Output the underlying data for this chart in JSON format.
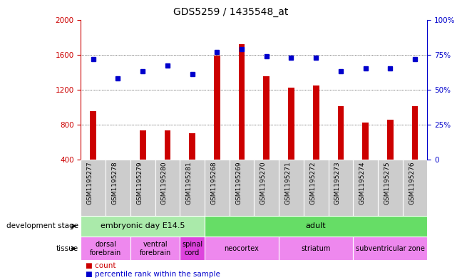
{
  "title": "GDS5259 / 1435548_at",
  "samples": [
    "GSM1195277",
    "GSM1195278",
    "GSM1195279",
    "GSM1195280",
    "GSM1195281",
    "GSM1195268",
    "GSM1195269",
    "GSM1195270",
    "GSM1195271",
    "GSM1195272",
    "GSM1195273",
    "GSM1195274",
    "GSM1195275",
    "GSM1195276"
  ],
  "bar_values": [
    950,
    390,
    730,
    730,
    700,
    1590,
    1720,
    1350,
    1220,
    1250,
    1010,
    820,
    855,
    1010
  ],
  "dot_values": [
    72,
    58,
    63,
    67,
    61,
    77,
    79,
    74,
    73,
    73,
    63,
    65,
    65,
    72
  ],
  "bar_color": "#cc0000",
  "dot_color": "#0000cc",
  "ylim_left": [
    400,
    2000
  ],
  "ylim_right": [
    0,
    100
  ],
  "yticks_left": [
    400,
    800,
    1200,
    1600,
    2000
  ],
  "yticks_right": [
    0,
    25,
    50,
    75,
    100
  ],
  "grid_values": [
    800,
    1200,
    1600
  ],
  "dev_stage_groups": [
    {
      "label": "embryonic day E14.5",
      "start": 0,
      "end": 4,
      "color": "#aaeaaa"
    },
    {
      "label": "adult",
      "start": 5,
      "end": 13,
      "color": "#66dd66"
    }
  ],
  "tissue_groups": [
    {
      "label": "dorsal\nforebrain",
      "start": 0,
      "end": 1,
      "color": "#ee88ee"
    },
    {
      "label": "ventral\nforebrain",
      "start": 2,
      "end": 3,
      "color": "#ee88ee"
    },
    {
      "label": "spinal\ncord",
      "start": 4,
      "end": 4,
      "color": "#dd44dd"
    },
    {
      "label": "neocortex",
      "start": 5,
      "end": 7,
      "color": "#ee88ee"
    },
    {
      "label": "striatum",
      "start": 8,
      "end": 10,
      "color": "#ee88ee"
    },
    {
      "label": "subventricular zone",
      "start": 11,
      "end": 13,
      "color": "#ee88ee"
    }
  ],
  "dev_stage_label": "development stage",
  "tissue_label": "tissue",
  "legend_count": "count",
  "legend_percentile": "percentile rank within the sample",
  "bar_width": 0.25,
  "title_fontsize": 10,
  "tick_fontsize": 7.5,
  "xlabels_fontsize": 6.5
}
